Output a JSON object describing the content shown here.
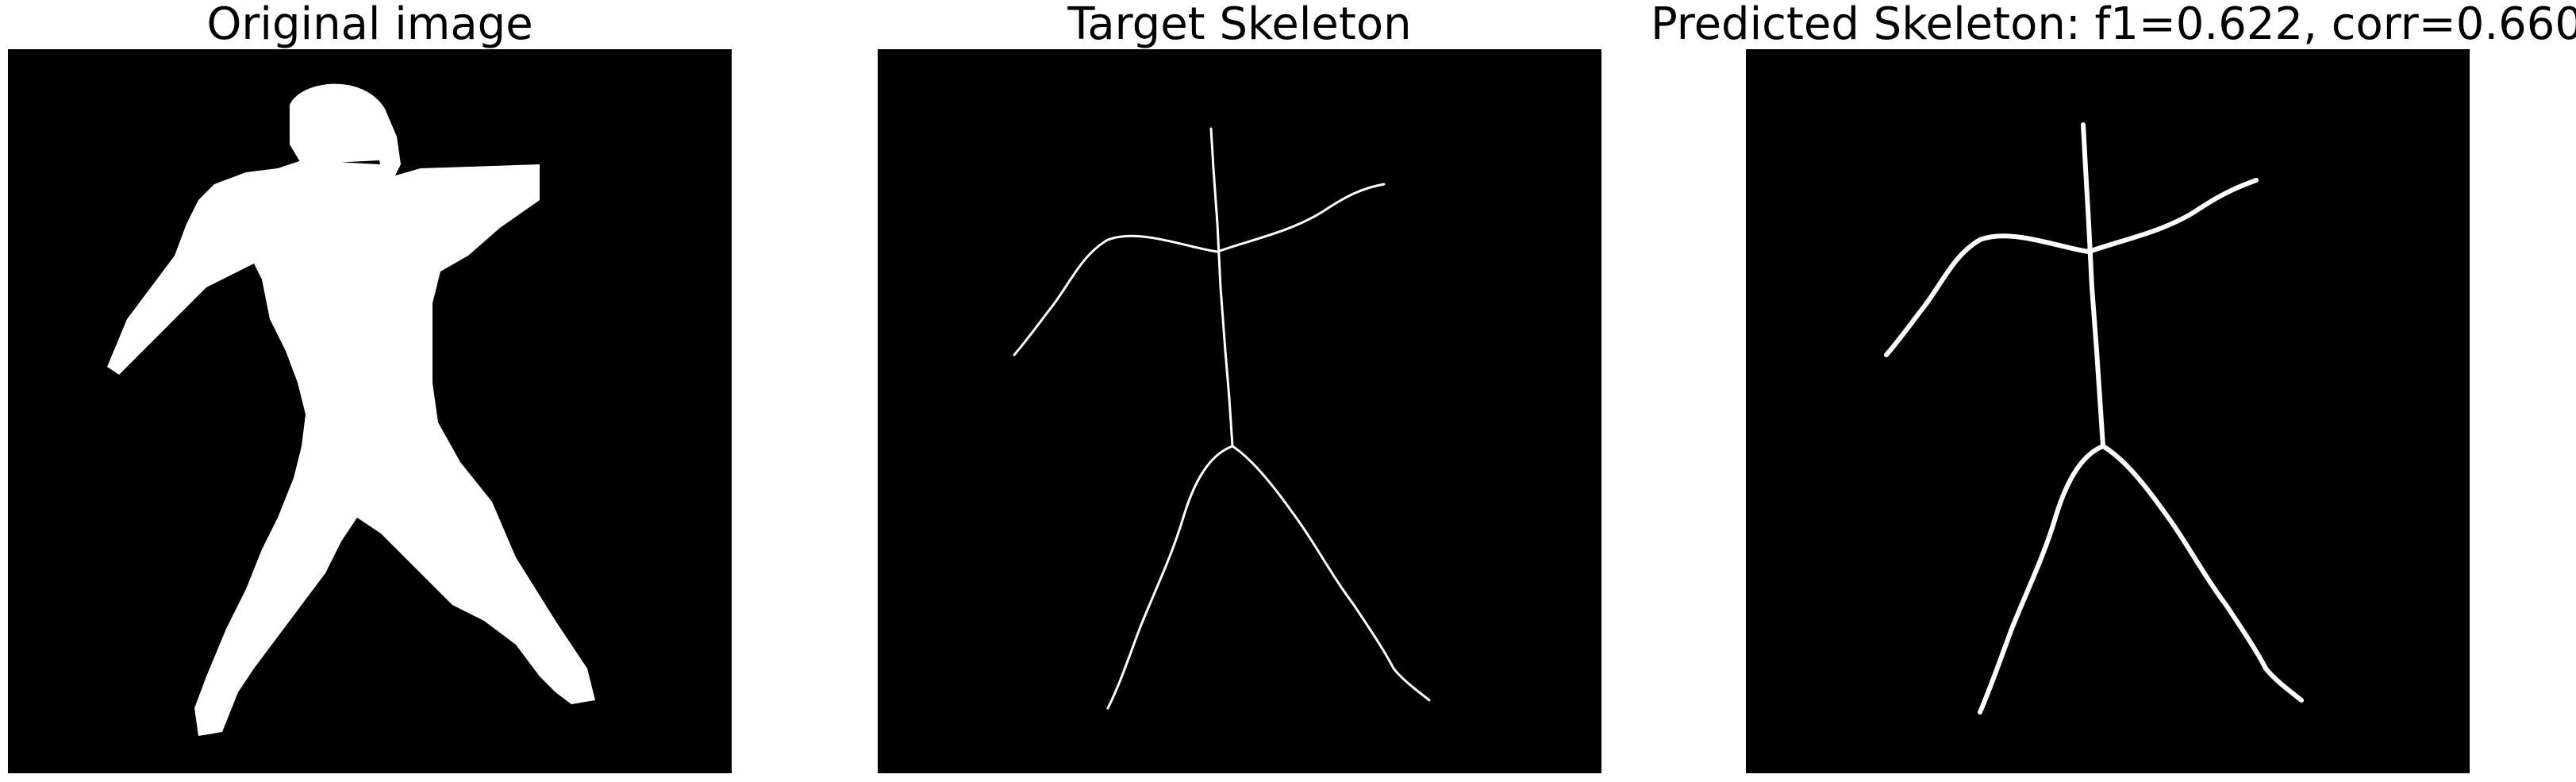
{
  "figure": {
    "panels": [
      {
        "title": "Original image"
      },
      {
        "title": "Target Skeleton"
      },
      {
        "title": "Predicted Skeleton: f1=0.622, corr=0.660"
      }
    ],
    "colors": {
      "background": "#000000",
      "foreground": "#ffffff"
    }
  }
}
